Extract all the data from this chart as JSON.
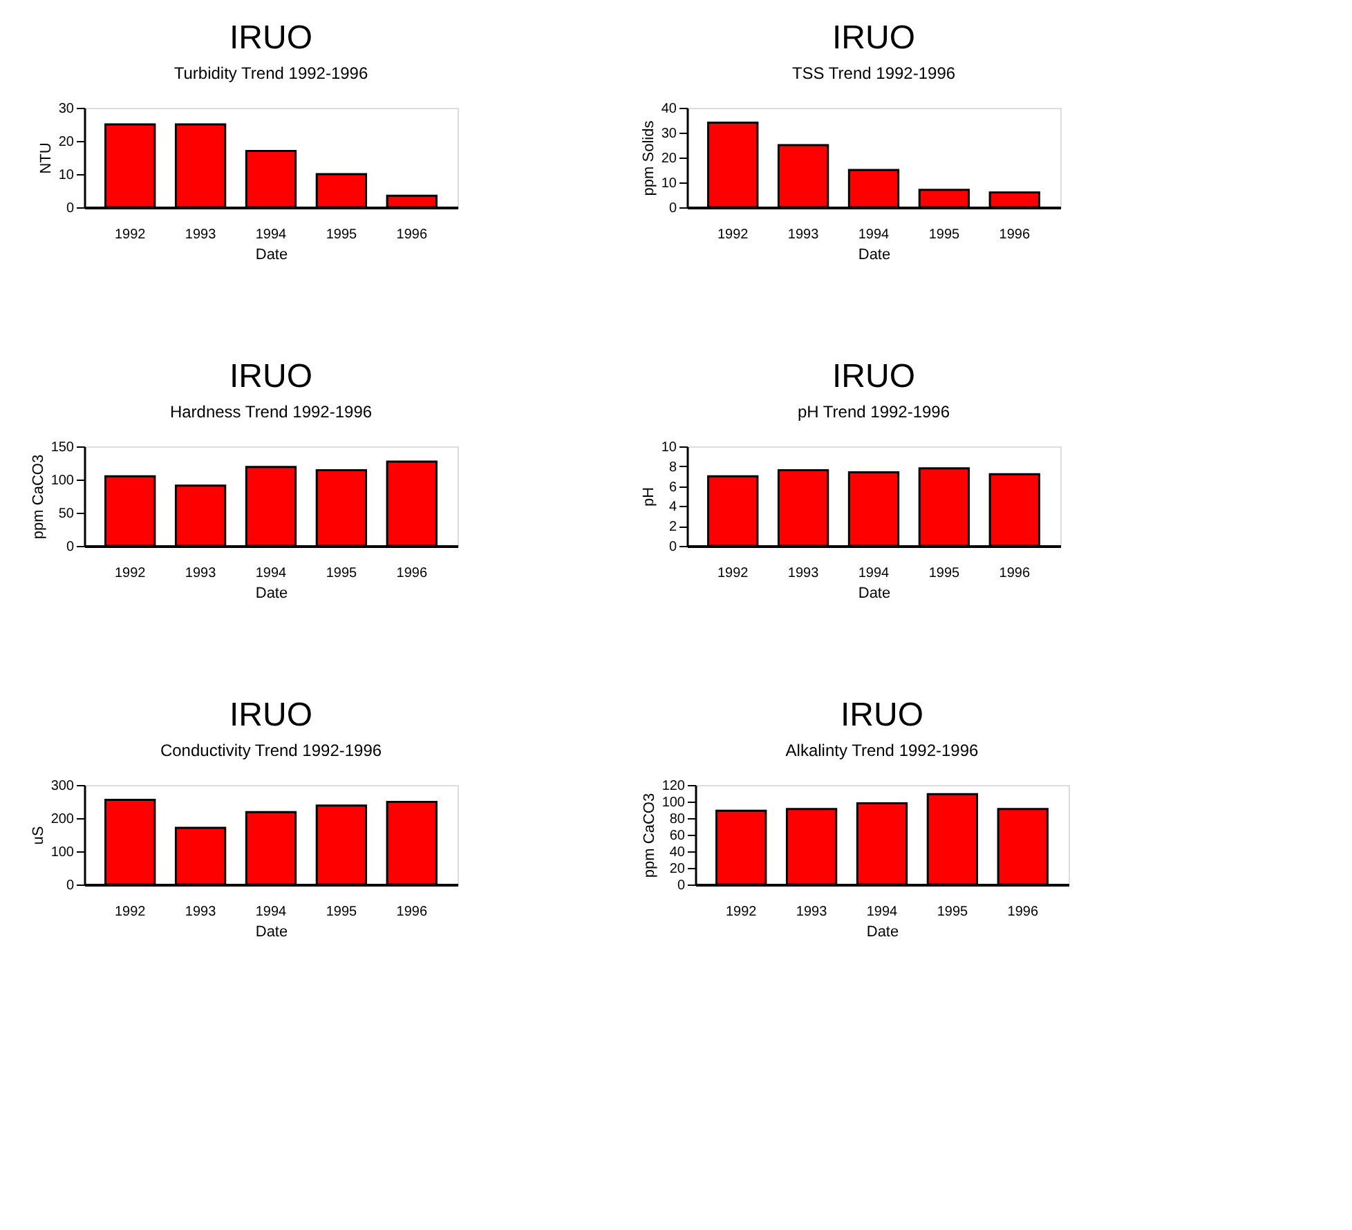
{
  "chart_data": [
    {
      "type": "bar",
      "title": "IRUO",
      "subtitle": "Turbidity Trend 1992-1996",
      "xlabel": "Date",
      "ylabel": "NTU",
      "categories": [
        "1992",
        "1993",
        "1994",
        "1995",
        "1996"
      ],
      "values": [
        25,
        25,
        17,
        10,
        3.5
      ],
      "color": "#ff0000",
      "ylim": [
        0,
        30
      ],
      "yticks": [
        0,
        10,
        20,
        30
      ],
      "grid": false
    },
    {
      "type": "bar",
      "title": "IRUO",
      "subtitle": "TSS Trend 1992-1996",
      "xlabel": "Date",
      "ylabel": "ppm Solids",
      "categories": [
        "1992",
        "1993",
        "1994",
        "1995",
        "1996"
      ],
      "values": [
        34,
        25,
        15,
        7,
        6
      ],
      "color": "#ff0000",
      "ylim": [
        0,
        40
      ],
      "yticks": [
        0,
        10,
        20,
        30,
        40
      ],
      "grid": false
    },
    {
      "type": "bar",
      "title": "IRUO",
      "subtitle": "Hardness Trend 1992-1996",
      "xlabel": "Date",
      "ylabel": "ppm CaCO3",
      "categories": [
        "1992",
        "1993",
        "1994",
        "1995",
        "1996"
      ],
      "values": [
        105,
        91,
        119,
        114,
        127
      ],
      "color": "#ff0000",
      "ylim": [
        0,
        150
      ],
      "yticks": [
        0,
        50,
        100,
        150
      ],
      "grid": false
    },
    {
      "type": "bar",
      "title": "IRUO",
      "subtitle": "pH Trend 1992-1996",
      "xlabel": "Date",
      "ylabel": "pH",
      "categories": [
        "1992",
        "1993",
        "1994",
        "1995",
        "1996"
      ],
      "values": [
        7.0,
        7.6,
        7.4,
        7.8,
        7.2
      ],
      "color": "#ff0000",
      "ylim": [
        0,
        10
      ],
      "yticks": [
        0,
        2,
        4,
        6,
        8,
        10
      ],
      "grid": false
    },
    {
      "type": "bar",
      "title": "IRUO",
      "subtitle": "Conductivity Trend 1992-1996",
      "xlabel": "Date",
      "ylabel": "uS",
      "categories": [
        "1992",
        "1993",
        "1994",
        "1995",
        "1996"
      ],
      "values": [
        255,
        171,
        218,
        238,
        249
      ],
      "color": "#ff0000",
      "ylim": [
        0,
        300
      ],
      "yticks": [
        0,
        100,
        200,
        300
      ],
      "grid": false
    },
    {
      "type": "bar",
      "title": "IRUO",
      "subtitle": "Alkalinty Trend 1992-1996",
      "xlabel": "Date",
      "ylabel": "ppm CaCO3",
      "categories": [
        "1992",
        "1993",
        "1994",
        "1995",
        "1996"
      ],
      "values": [
        89,
        91,
        98,
        109,
        91
      ],
      "color": "#ff0000",
      "ylim": [
        0,
        120
      ],
      "yticks": [
        0,
        20,
        40,
        60,
        80,
        100,
        120
      ],
      "grid": false
    }
  ]
}
